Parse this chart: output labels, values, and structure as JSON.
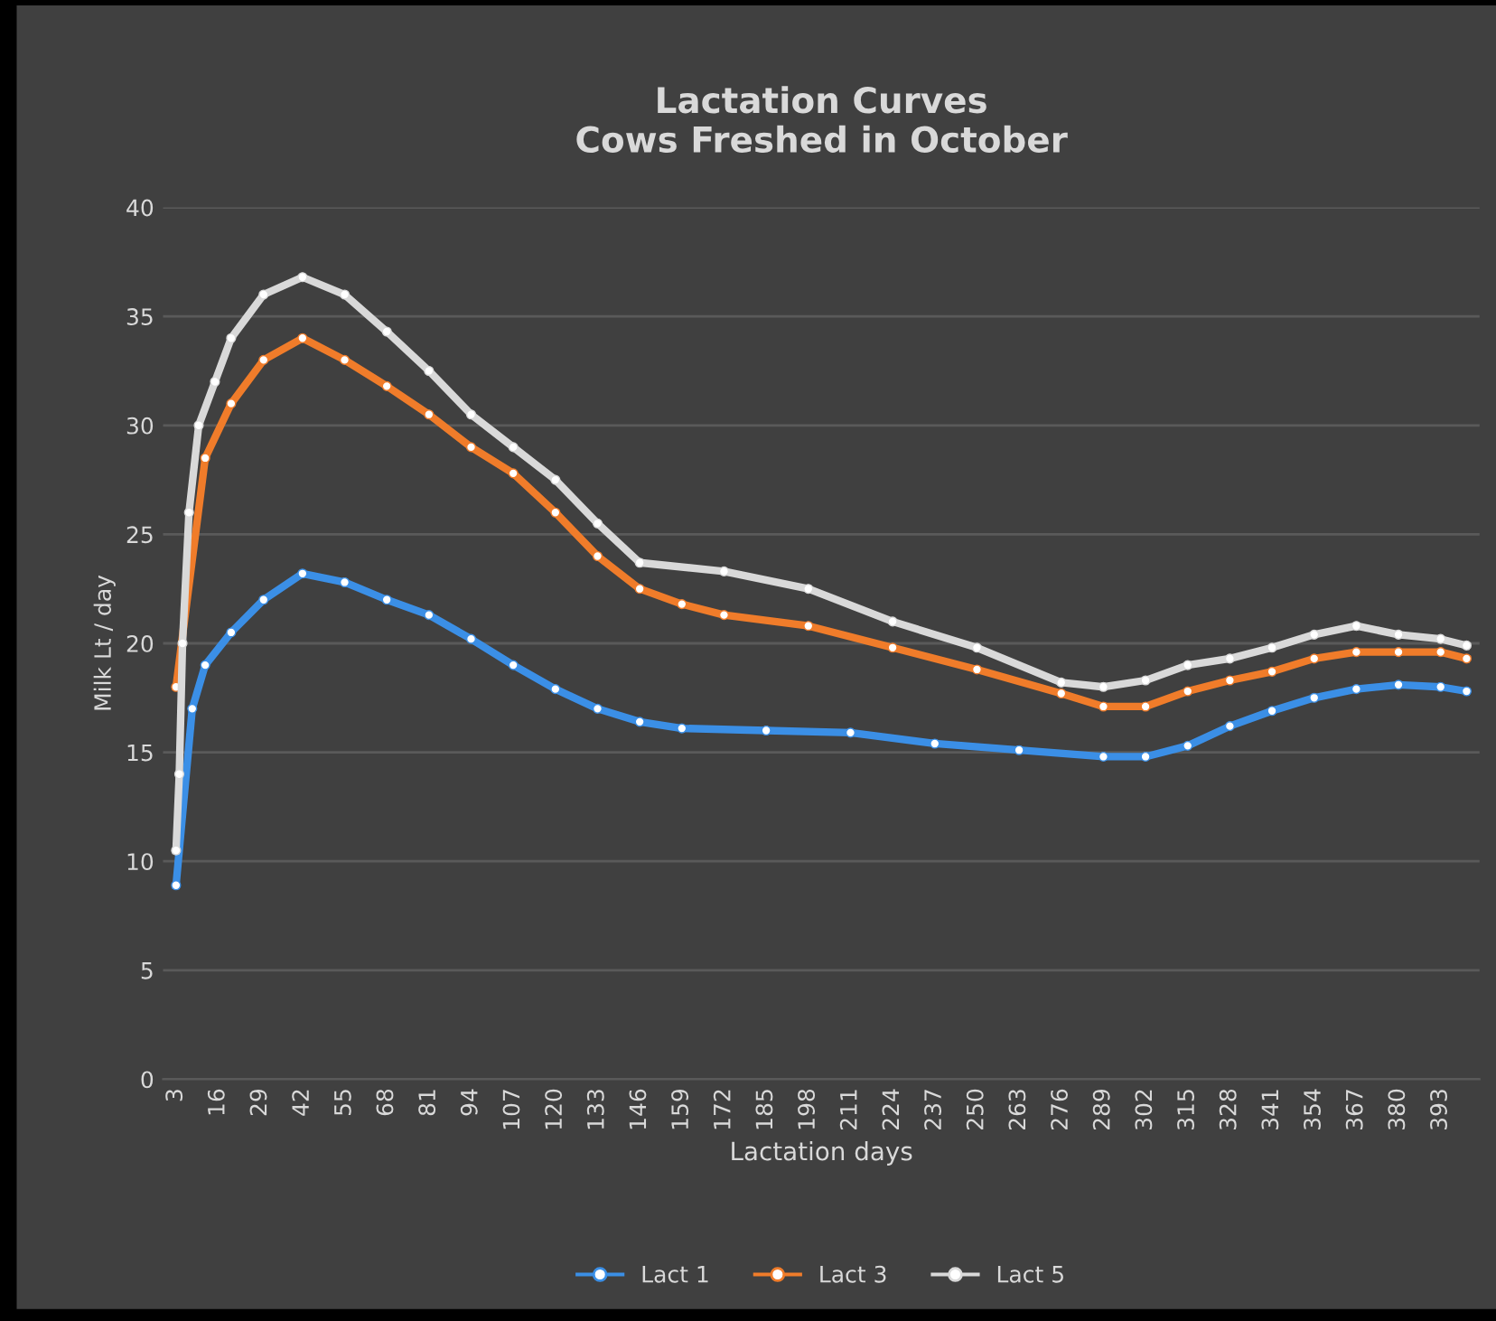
{
  "chart_data": {
    "type": "line",
    "title": "Lactation Curves\nCows Freshed in October",
    "xlabel": "Lactation days",
    "ylabel": "Milk Lt / day",
    "xlim": [
      -1,
      405
    ],
    "xticks": [
      3,
      16,
      29,
      42,
      55,
      68,
      81,
      94,
      107,
      120,
      133,
      146,
      159,
      172,
      185,
      198,
      211,
      224,
      237,
      250,
      263,
      276,
      289,
      302,
      315,
      328,
      341,
      354,
      367,
      380,
      393
    ],
    "ylim": [
      0,
      40
    ],
    "yticks": [
      0,
      5,
      10,
      15,
      20,
      25,
      30,
      35,
      40
    ],
    "grid": "y",
    "legend": "bottom",
    "marker": "circle",
    "line_style": "solid",
    "series": [
      {
        "name": "Lact 1",
        "color": "#3b8fe6",
        "x": [
          3,
          8,
          12,
          20,
          30,
          42,
          55,
          68,
          81,
          94,
          107,
          120,
          133,
          146,
          159,
          185,
          211,
          237,
          263,
          289,
          302,
          315,
          328,
          341,
          354,
          367,
          380,
          393,
          401
        ],
        "values": [
          8.9,
          17,
          19,
          20.5,
          22,
          23.2,
          22.8,
          22,
          21.3,
          20.2,
          19,
          17.9,
          17,
          16.4,
          16.1,
          16,
          15.9,
          15.4,
          15.1,
          14.8,
          14.8,
          15.3,
          16.2,
          16.9,
          17.5,
          17.9,
          18.1,
          18,
          17.8
        ]
      },
      {
        "name": "Lact 3",
        "color": "#f07c2a",
        "x": [
          3,
          12,
          20,
          30,
          42,
          55,
          68,
          81,
          94,
          107,
          120,
          133,
          146,
          159,
          172,
          198,
          224,
          250,
          276,
          289,
          302,
          315,
          328,
          341,
          354,
          367,
          380,
          393,
          401
        ],
        "values": [
          18,
          28.5,
          31,
          33,
          34,
          33,
          31.8,
          30.5,
          29,
          27.8,
          26,
          24,
          22.5,
          21.8,
          21.3,
          20.8,
          19.8,
          18.8,
          17.7,
          17.1,
          17.1,
          17.8,
          18.3,
          18.7,
          19.3,
          19.6,
          19.6,
          19.6,
          19.3
        ]
      },
      {
        "name": "Lact 5",
        "color": "#d9d9d9",
        "x": [
          3,
          4,
          5,
          7,
          10,
          15,
          20,
          30,
          42,
          55,
          68,
          81,
          94,
          107,
          120,
          133,
          146,
          172,
          198,
          224,
          250,
          276,
          289,
          302,
          315,
          328,
          341,
          354,
          367,
          380,
          393,
          401
        ],
        "values": [
          10.5,
          14,
          20,
          26,
          30,
          32,
          34,
          36,
          36.8,
          36,
          34.3,
          32.5,
          30.5,
          29,
          27.5,
          25.5,
          23.7,
          23.3,
          22.5,
          21,
          19.8,
          18.2,
          18,
          18.3,
          19,
          19.3,
          19.8,
          20.4,
          20.8,
          20.4,
          20.2,
          19.9
        ]
      }
    ]
  }
}
